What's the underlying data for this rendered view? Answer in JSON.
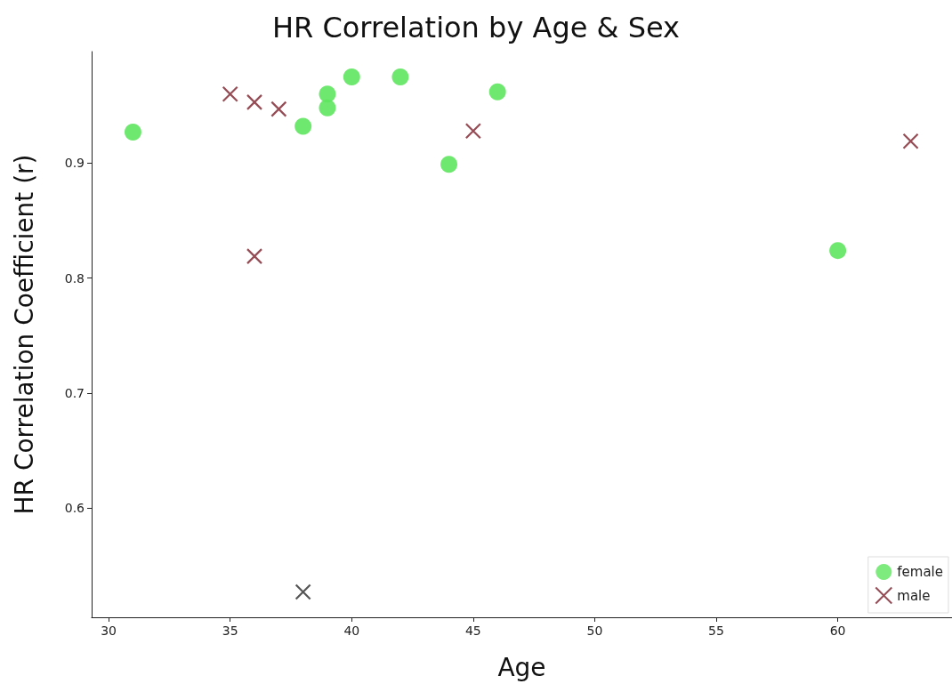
{
  "chart_data": {
    "type": "scatter",
    "title": "HR Correlation by Age & Sex",
    "xlabel": "Age",
    "ylabel": "HR Correlation Coefficient (r)",
    "xlim": [
      29.3,
      64.7
    ],
    "xticks": [
      30,
      35,
      40,
      45,
      50,
      55,
      60
    ],
    "ylim": [
      0.505,
      0.997
    ],
    "yticks": [
      0.6,
      0.7,
      0.8,
      0.9
    ],
    "grid": false,
    "legend": "bottom right",
    "series": [
      {
        "name": "female",
        "color": "#5ee65e",
        "marker": "circle",
        "x": [
          31,
          38,
          39,
          39,
          40,
          42,
          44,
          46,
          60
        ],
        "values": [
          0.927,
          0.932,
          0.96,
          0.948,
          0.975,
          0.975,
          0.899,
          0.962,
          0.824
        ]
      },
      {
        "name": "male",
        "color": "#7a1f2b",
        "marker": "cross",
        "x": [
          35,
          36,
          37,
          36,
          38,
          45,
          63
        ],
        "values": [
          0.96,
          0.953,
          0.947,
          0.819,
          0.527,
          0.928,
          0.919
        ],
        "colors": [
          "#7a1f2b",
          "#7a1f2b",
          "#7a1f2b",
          "#7a1f2b",
          "#2a2a2a",
          "#7a1f2b",
          "#7a1f2b"
        ]
      }
    ]
  }
}
